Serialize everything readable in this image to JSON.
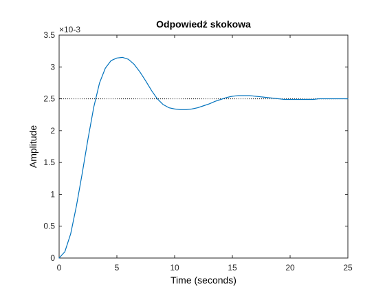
{
  "chart_data": {
    "type": "line",
    "title": "Odpowiedź skokowa",
    "xlabel": "Time (seconds)",
    "ylabel": "Amplitude",
    "x_exponent_label": "",
    "y_exponent_label": "×10-3",
    "y_multiplier": 0.001,
    "xlim": [
      0,
      25
    ],
    "ylim": [
      0,
      3.5
    ],
    "xticks": [
      0,
      5,
      10,
      15,
      20,
      25
    ],
    "xtick_labels": [
      "0",
      "5",
      "10",
      "15",
      "20",
      "25"
    ],
    "yticks": [
      0,
      0.5,
      1,
      1.5,
      2,
      2.5,
      3,
      3.5
    ],
    "ytick_labels": [
      "0",
      "0.5",
      "1",
      "1.5",
      "2",
      "2.5",
      "3",
      "3.5"
    ],
    "grid": false,
    "reference_line": {
      "y": 2.5,
      "style": "dotted",
      "color": "#000000"
    },
    "series": [
      {
        "color": "#0072BD",
        "x": [
          0,
          0.5,
          1,
          1.5,
          2,
          2.5,
          3,
          3.5,
          4,
          4.5,
          5,
          5.5,
          6,
          6.5,
          7,
          7.5,
          8,
          8.5,
          9,
          9.5,
          10,
          10.5,
          11,
          11.5,
          12,
          12.5,
          13,
          13.5,
          14,
          14.5,
          15,
          15.5,
          16,
          16.5,
          17,
          17.5,
          18,
          18.5,
          19,
          19.5,
          20,
          20.5,
          21,
          21.5,
          22,
          22.5,
          23,
          23.5,
          24,
          24.5,
          25
        ],
        "y": [
          0,
          0.1,
          0.38,
          0.82,
          1.33,
          1.87,
          2.37,
          2.75,
          2.98,
          3.1,
          3.14,
          3.15,
          3.12,
          3.04,
          2.92,
          2.78,
          2.63,
          2.5,
          2.41,
          2.36,
          2.34,
          2.33,
          2.33,
          2.34,
          2.36,
          2.39,
          2.42,
          2.46,
          2.49,
          2.52,
          2.54,
          2.55,
          2.55,
          2.55,
          2.54,
          2.53,
          2.52,
          2.51,
          2.5,
          2.49,
          2.49,
          2.49,
          2.49,
          2.49,
          2.49,
          2.5,
          2.5,
          2.5,
          2.5,
          2.5,
          2.5
        ]
      }
    ]
  }
}
